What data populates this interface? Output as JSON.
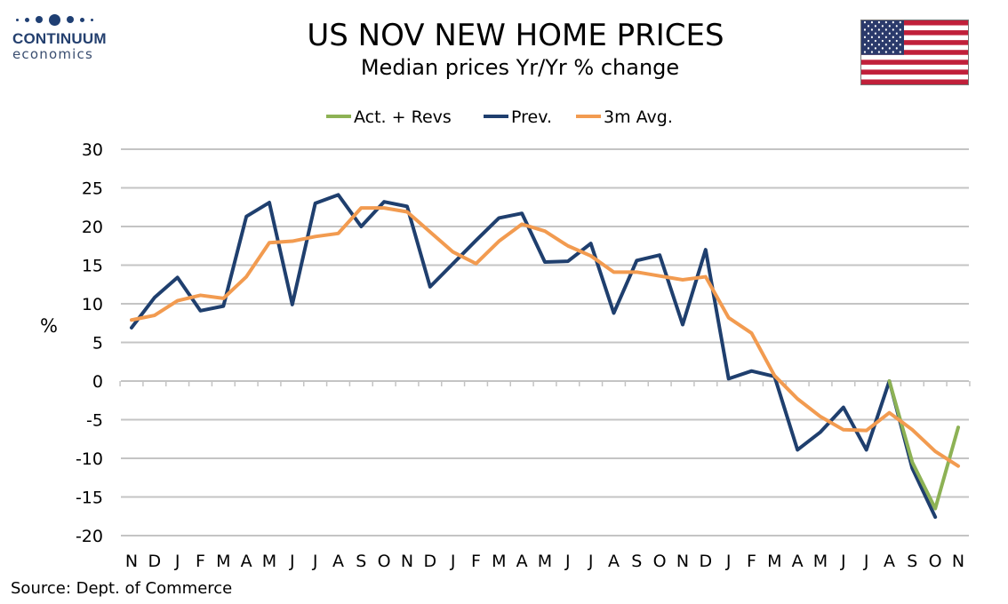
{
  "logo": {
    "name": "CONTINUUM",
    "sub": "economics"
  },
  "header": {
    "title": "US NOV NEW HOME PRICES",
    "subtitle": "Median prices Yr/Yr % change"
  },
  "source": "Source: Dept. of Commerce",
  "flag": {
    "icon": "us-flag-icon"
  },
  "chart_data": {
    "type": "line",
    "title": "US NOV NEW HOME PRICES",
    "subtitle": "Median prices Yr/Yr % change",
    "ylabel": "%",
    "xlabel": "",
    "ylim": [
      -20,
      30
    ],
    "yticks": [
      30,
      25,
      20,
      15,
      10,
      5,
      0,
      -5,
      -10,
      -15,
      -20
    ],
    "grid": true,
    "legend_position": "top-center",
    "categories": [
      "N",
      "D",
      "J",
      "F",
      "M",
      "A",
      "M",
      "J",
      "J",
      "A",
      "S",
      "O",
      "N",
      "D",
      "J",
      "F",
      "M",
      "A",
      "M",
      "J",
      "J",
      "A",
      "S",
      "O",
      "N",
      "D",
      "J",
      "F",
      "M",
      "A",
      "M",
      "J",
      "J",
      "A",
      "S",
      "O",
      "N"
    ],
    "series": [
      {
        "name": "Act. + Revs",
        "color": "#8db255",
        "values": [
          null,
          null,
          null,
          null,
          null,
          null,
          null,
          null,
          null,
          null,
          null,
          null,
          null,
          null,
          null,
          null,
          null,
          null,
          null,
          null,
          null,
          null,
          null,
          null,
          null,
          null,
          null,
          null,
          null,
          null,
          null,
          null,
          null,
          0.0,
          -10.5,
          -16.5,
          -6.0
        ]
      },
      {
        "name": "Prev.",
        "color": "#1f3f6e",
        "values": [
          6.9,
          10.8,
          13.4,
          9.1,
          9.7,
          21.3,
          23.1,
          9.9,
          23.0,
          24.1,
          20.0,
          23.2,
          22.6,
          12.2,
          15.2,
          18.2,
          21.1,
          21.7,
          15.4,
          15.5,
          17.8,
          8.8,
          15.6,
          16.3,
          7.3,
          17.0,
          0.3,
          1.3,
          0.6,
          -8.9,
          -6.6,
          -3.4,
          -8.9,
          0.0,
          -11.3,
          -17.6,
          null
        ]
      },
      {
        "name": "3m Avg.",
        "color": "#f29b50",
        "values": [
          7.9,
          8.5,
          10.4,
          11.1,
          10.7,
          13.5,
          17.9,
          18.1,
          18.7,
          19.1,
          22.4,
          22.4,
          21.9,
          19.3,
          16.7,
          15.2,
          18.1,
          20.3,
          19.4,
          17.5,
          16.2,
          14.1,
          14.1,
          13.6,
          13.1,
          13.5,
          8.2,
          6.2,
          0.7,
          -2.3,
          -4.6,
          -6.3,
          -6.4,
          -4.1,
          -6.3,
          -9.1,
          -11.0
        ]
      }
    ]
  }
}
